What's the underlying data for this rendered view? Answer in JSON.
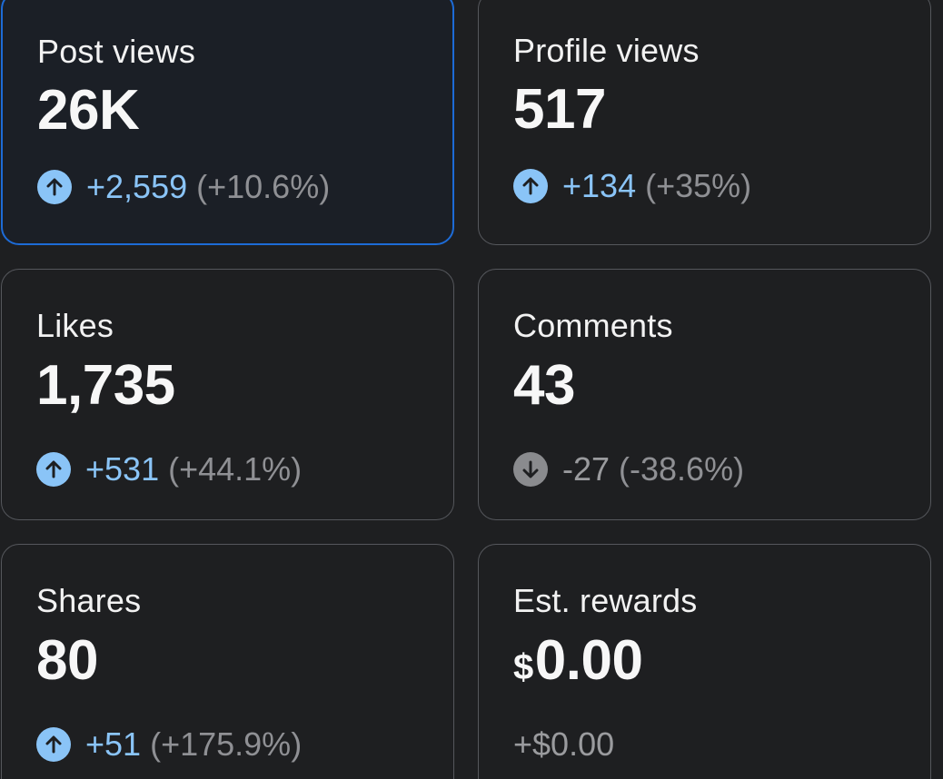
{
  "cards": [
    {
      "label": "Post views",
      "value": "26K",
      "delta_direction": "up",
      "delta_abs": "+2,559",
      "delta_pct": "(+10.6%)",
      "selected": true
    },
    {
      "label": "Profile views",
      "value": "517",
      "delta_direction": "up",
      "delta_abs": "+134",
      "delta_pct": "(+35%)"
    },
    {
      "label": "Likes",
      "value": "1,735",
      "delta_direction": "up",
      "delta_abs": "+531",
      "delta_pct": "(+44.1%)"
    },
    {
      "label": "Comments",
      "value": "43",
      "delta_direction": "down",
      "delta_abs": "-27",
      "delta_pct": "(-38.6%)"
    },
    {
      "label": "Shares",
      "value": "80",
      "delta_direction": "up",
      "delta_abs": "+51",
      "delta_pct": "(+175.9%)"
    },
    {
      "label": "Est. rewards",
      "currency": "$",
      "value": "0.00",
      "delta_direction": "none",
      "delta_abs": "+$0.00"
    }
  ],
  "icons": {
    "up": "arrow-up-circle-icon",
    "down": "arrow-down-circle-icon"
  },
  "colors": {
    "background": "#1e1f21",
    "card_border": "#55575c",
    "selected_border": "#1d6bd6",
    "positive": "#8ac4f7",
    "negative": "#8a8b8e"
  }
}
